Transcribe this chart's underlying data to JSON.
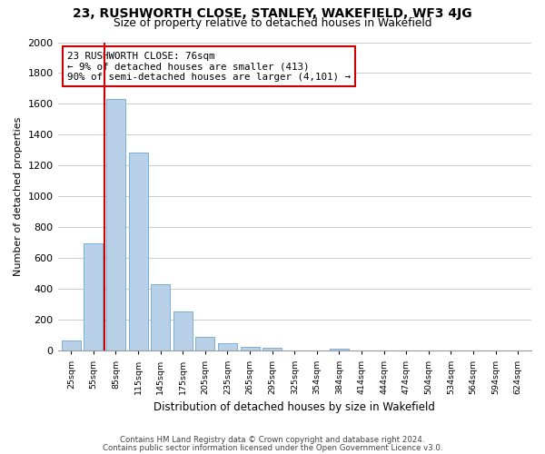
{
  "title1": "23, RUSHWORTH CLOSE, STANLEY, WAKEFIELD, WF3 4JG",
  "title2": "Size of property relative to detached houses in Wakefield",
  "xlabel": "Distribution of detached houses by size in Wakefield",
  "ylabel": "Number of detached properties",
  "bar_labels": [
    "25sqm",
    "55sqm",
    "85sqm",
    "115sqm",
    "145sqm",
    "175sqm",
    "205sqm",
    "235sqm",
    "265sqm",
    "295sqm",
    "325sqm",
    "354sqm",
    "384sqm",
    "414sqm",
    "444sqm",
    "474sqm",
    "504sqm",
    "534sqm",
    "564sqm",
    "594sqm",
    "624sqm"
  ],
  "bar_values": [
    65,
    695,
    1635,
    1285,
    430,
    255,
    90,
    50,
    25,
    20,
    0,
    0,
    15,
    0,
    0,
    0,
    0,
    0,
    0,
    0,
    0
  ],
  "bar_color": "#b8d0e8",
  "bar_edge_color": "#7aafd4",
  "vline_color": "#cc0000",
  "annotation_line1": "23 RUSHWORTH CLOSE: 76sqm",
  "annotation_line2": "← 9% of detached houses are smaller (413)",
  "annotation_line3": "90% of semi-detached houses are larger (4,101) →",
  "annotation_box_color": "#ffffff",
  "annotation_box_edge": "#cc0000",
  "ylim": [
    0,
    2000
  ],
  "yticks": [
    0,
    200,
    400,
    600,
    800,
    1000,
    1200,
    1400,
    1600,
    1800,
    2000
  ],
  "footnote1": "Contains HM Land Registry data © Crown copyright and database right 2024.",
  "footnote2": "Contains public sector information licensed under the Open Government Licence v3.0.",
  "bg_color": "#ffffff",
  "grid_color": "#cccccc"
}
